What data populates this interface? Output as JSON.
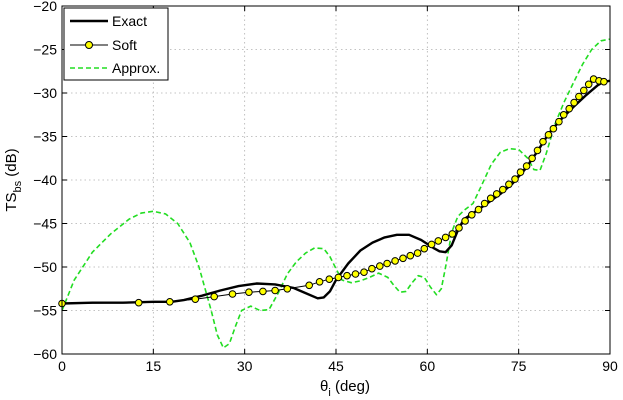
{
  "chart_data": {
    "type": "line",
    "xlabel": {
      "main": "θ",
      "sub": "i",
      "unit": " (deg)"
    },
    "ylabel": {
      "main": "TS",
      "sub": "bs",
      "unit": " (dB)"
    },
    "xlim": [
      0,
      90
    ],
    "ylim": [
      -60,
      -20
    ],
    "xticks": [
      0,
      15,
      30,
      45,
      60,
      75,
      90
    ],
    "yticks": [
      -60,
      -55,
      -50,
      -45,
      -40,
      -35,
      -30,
      -25,
      -20
    ],
    "grid": true,
    "legend_position": "top-left",
    "series": [
      {
        "name": "Exact",
        "color": "#000000",
        "style": "solid",
        "points": [
          [
            0,
            -54.2
          ],
          [
            5,
            -54.1
          ],
          [
            10,
            -54.1
          ],
          [
            15,
            -54.0
          ],
          [
            18,
            -54.0
          ],
          [
            20,
            -53.8
          ],
          [
            23,
            -53.3
          ],
          [
            26,
            -52.7
          ],
          [
            29,
            -52.2
          ],
          [
            32,
            -51.9
          ],
          [
            35,
            -52.0
          ],
          [
            38,
            -52.4
          ],
          [
            40,
            -53.0
          ],
          [
            42,
            -53.6
          ],
          [
            43,
            -53.5
          ],
          [
            44,
            -52.8
          ],
          [
            45,
            -51.5
          ],
          [
            47,
            -49.6
          ],
          [
            49,
            -48.1
          ],
          [
            51,
            -47.2
          ],
          [
            53,
            -46.6
          ],
          [
            55,
            -46.3
          ],
          [
            57,
            -46.3
          ],
          [
            59,
            -46.9
          ],
          [
            61,
            -47.8
          ],
          [
            62,
            -48.2
          ],
          [
            63,
            -48.3
          ],
          [
            64,
            -47.5
          ],
          [
            65,
            -45.8
          ],
          [
            66,
            -44.5
          ],
          [
            68,
            -43.6
          ],
          [
            70,
            -42.6
          ],
          [
            72,
            -41.6
          ],
          [
            74,
            -40.4
          ],
          [
            76,
            -38.8
          ],
          [
            78,
            -36.8
          ],
          [
            80,
            -34.6
          ],
          [
            82,
            -33.0
          ],
          [
            84,
            -31.6
          ],
          [
            86,
            -30.3
          ],
          [
            88,
            -29.1
          ],
          [
            89,
            -28.7
          ],
          [
            90,
            -28.6
          ]
        ]
      },
      {
        "name": "Soft",
        "color": "#000000",
        "marker_fill": "#ffff00",
        "style": "solid-marker",
        "points": [
          [
            0,
            -54.2
          ],
          [
            12.6,
            -54.1
          ],
          [
            17.7,
            -54.0
          ],
          [
            21.9,
            -53.7
          ],
          [
            25,
            -53.4
          ],
          [
            28,
            -53.1
          ],
          [
            30.7,
            -52.9
          ],
          [
            33,
            -52.8
          ],
          [
            35,
            -52.7
          ],
          [
            37,
            -52.5
          ],
          [
            40.6,
            -52.1
          ],
          [
            42.3,
            -51.7
          ],
          [
            43.9,
            -51.4
          ],
          [
            45.4,
            -51.2
          ],
          [
            46.8,
            -51.0
          ],
          [
            48.2,
            -50.8
          ],
          [
            49.6,
            -50.6
          ],
          [
            50.9,
            -50.2
          ],
          [
            52.2,
            -49.9
          ],
          [
            53.4,
            -49.6
          ],
          [
            54.7,
            -49.3
          ],
          [
            56,
            -49.0
          ],
          [
            57.2,
            -48.7
          ],
          [
            58.4,
            -48.4
          ],
          [
            59.5,
            -47.9
          ],
          [
            60.7,
            -47.4
          ],
          [
            61.8,
            -47.0
          ],
          [
            63,
            -46.6
          ],
          [
            64.1,
            -46.2
          ],
          [
            65.2,
            -45.5
          ],
          [
            66.2,
            -44.7
          ],
          [
            67.3,
            -44.0
          ],
          [
            68.4,
            -43.4
          ],
          [
            69.4,
            -42.7
          ],
          [
            70.4,
            -42.1
          ],
          [
            71.4,
            -41.6
          ],
          [
            72.4,
            -41.1
          ],
          [
            73.4,
            -40.5
          ],
          [
            74.4,
            -39.9
          ],
          [
            75.3,
            -39.1
          ],
          [
            76.3,
            -38.4
          ],
          [
            77.2,
            -37.5
          ],
          [
            78.1,
            -36.6
          ],
          [
            79,
            -35.6
          ],
          [
            79.9,
            -34.8
          ],
          [
            80.7,
            -34.1
          ],
          [
            81.6,
            -33.3
          ],
          [
            82.4,
            -32.5
          ],
          [
            83.3,
            -31.8
          ],
          [
            84.1,
            -31.1
          ],
          [
            84.9,
            -30.4
          ],
          [
            85.7,
            -29.7
          ],
          [
            86.5,
            -29.0
          ],
          [
            87.3,
            -28.4
          ],
          [
            88.2,
            -28.6
          ],
          [
            89,
            -28.7
          ]
        ]
      },
      {
        "name": "Approx.",
        "color": "#22dd22",
        "style": "dashed",
        "points": [
          [
            0,
            -55.0
          ],
          [
            2,
            -51.5
          ],
          [
            5,
            -48.3
          ],
          [
            8,
            -46.2
          ],
          [
            11,
            -44.5
          ],
          [
            13,
            -43.8
          ],
          [
            15,
            -43.6
          ],
          [
            17,
            -43.9
          ],
          [
            19,
            -45.0
          ],
          [
            21,
            -47.2
          ],
          [
            22.5,
            -50.0
          ],
          [
            23.5,
            -52.5
          ],
          [
            24.5,
            -55.0
          ],
          [
            25.5,
            -57.8
          ],
          [
            26.5,
            -59.3
          ],
          [
            27.5,
            -58.8
          ],
          [
            28.5,
            -56.8
          ],
          [
            29.5,
            -55.0
          ],
          [
            31,
            -54.5
          ],
          [
            32.5,
            -55.0
          ],
          [
            34,
            -54.9
          ],
          [
            35.5,
            -53.0
          ],
          [
            37,
            -50.8
          ],
          [
            38.5,
            -49.4
          ],
          [
            40,
            -48.4
          ],
          [
            41.5,
            -47.8
          ],
          [
            43,
            -47.9
          ],
          [
            44,
            -48.8
          ],
          [
            45,
            -50.2
          ],
          [
            46,
            -51.5
          ],
          [
            47.5,
            -51.8
          ],
          [
            49,
            -51.6
          ],
          [
            50.5,
            -51.2
          ],
          [
            52,
            -50.7
          ],
          [
            53.5,
            -51.2
          ],
          [
            54.5,
            -52.1
          ],
          [
            55.5,
            -52.9
          ],
          [
            56.5,
            -52.8
          ],
          [
            57.5,
            -51.8
          ],
          [
            58.5,
            -51.0
          ],
          [
            59.5,
            -51.2
          ],
          [
            60.5,
            -52.3
          ],
          [
            61.5,
            -53.2
          ],
          [
            62.3,
            -52.5
          ],
          [
            63,
            -50.0
          ],
          [
            64,
            -46.0
          ],
          [
            65,
            -44.2
          ],
          [
            66,
            -43.5
          ],
          [
            67.5,
            -42.7
          ],
          [
            69,
            -40.5
          ],
          [
            70.5,
            -38.2
          ],
          [
            72,
            -36.8
          ],
          [
            73.5,
            -36.4
          ],
          [
            75,
            -36.5
          ],
          [
            76.5,
            -37.5
          ],
          [
            77.5,
            -38.8
          ],
          [
            78.5,
            -38.9
          ],
          [
            79.5,
            -37.0
          ],
          [
            81,
            -33.5
          ],
          [
            82.5,
            -31.0
          ],
          [
            84,
            -28.8
          ],
          [
            85.5,
            -26.7
          ],
          [
            87,
            -25.0
          ],
          [
            88.5,
            -24.0
          ],
          [
            90,
            -23.8
          ]
        ]
      }
    ]
  }
}
